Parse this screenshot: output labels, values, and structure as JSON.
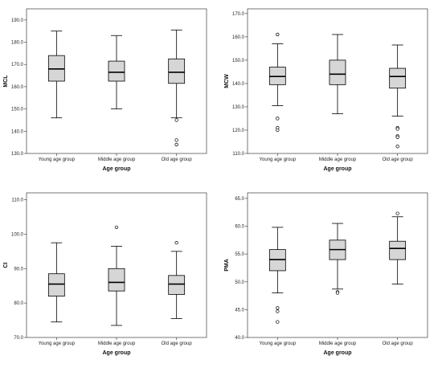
{
  "chart_data": [
    {
      "type": "box",
      "categories": [
        "Young age group",
        "Middle age group",
        "Old age group"
      ],
      "xlabel": "Age  group",
      "ylabel": "MCL",
      "ylim": [
        130,
        195
      ],
      "yticks": [
        130,
        140,
        150,
        160,
        170,
        180,
        190
      ],
      "tick_labels": [
        "130.0",
        "140.0",
        "150.0",
        "160.0",
        "170.0",
        "180.0",
        "190.0"
      ],
      "grid": false,
      "boxes": [
        {
          "category": "Young age group",
          "whisker_low": 146,
          "q1": 162.5,
          "median": 168,
          "q3": 174,
          "whisker_high": 185,
          "outliers": []
        },
        {
          "category": "Middle age group",
          "whisker_low": 150,
          "q1": 162.5,
          "median": 166.5,
          "q3": 171.5,
          "whisker_high": 183,
          "outliers": []
        },
        {
          "category": "Old age group",
          "whisker_low": 146,
          "q1": 161.5,
          "median": 166.5,
          "q3": 172.5,
          "whisker_high": 185.5,
          "outliers": [
            145,
            136,
            134
          ]
        }
      ]
    },
    {
      "type": "box",
      "categories": [
        "Young age group",
        "Middle age group",
        "Old age group"
      ],
      "xlabel": "Age  group",
      "ylabel": "MCW",
      "ylim": [
        110,
        172
      ],
      "yticks": [
        110,
        120,
        130,
        140,
        150,
        160,
        170
      ],
      "tick_labels": [
        "110.0",
        "120.0",
        "130.0",
        "140.0",
        "150.0",
        "160.0",
        "170.0"
      ],
      "grid": false,
      "boxes": [
        {
          "category": "Young age group",
          "whisker_low": 130.5,
          "q1": 139.5,
          "median": 143,
          "q3": 147,
          "whisker_high": 157,
          "outliers": [
            161,
            125,
            121,
            120
          ]
        },
        {
          "category": "Middle age group",
          "whisker_low": 127,
          "q1": 139.5,
          "median": 144,
          "q3": 150,
          "whisker_high": 161,
          "outliers": []
        },
        {
          "category": "Old age group",
          "whisker_low": 126,
          "q1": 138,
          "median": 143,
          "q3": 146.5,
          "whisker_high": 156.5,
          "outliers": [
            121,
            120.5,
            117.5,
            117,
            113
          ]
        }
      ]
    },
    {
      "type": "box",
      "categories": [
        "Young age group",
        "Middle age group",
        "Old age group"
      ],
      "xlabel": "Age  group",
      "ylabel": "CI",
      "ylim": [
        70,
        112
      ],
      "yticks": [
        70,
        80,
        90,
        100,
        110
      ],
      "tick_labels": [
        "70.0",
        "80.0",
        "90.0",
        "100.0",
        "110.0"
      ],
      "grid": false,
      "boxes": [
        {
          "category": "Young age group",
          "whisker_low": 74.5,
          "q1": 82,
          "median": 85.5,
          "q3": 88.5,
          "whisker_high": 97.5,
          "outliers": []
        },
        {
          "category": "Middle age group",
          "whisker_low": 73.5,
          "q1": 83.5,
          "median": 86,
          "q3": 90,
          "whisker_high": 96.5,
          "outliers": [
            102
          ]
        },
        {
          "category": "Old age group",
          "whisker_low": 75.5,
          "q1": 82.5,
          "median": 85.5,
          "q3": 88,
          "whisker_high": 95,
          "outliers": [
            97.5
          ]
        }
      ]
    },
    {
      "type": "box",
      "categories": [
        "Young age group",
        "Middle age group",
        "Old age group"
      ],
      "xlabel": "Age  group",
      "ylabel": "PMA",
      "ylim": [
        40,
        66
      ],
      "yticks": [
        40,
        45,
        50,
        55,
        60,
        65
      ],
      "tick_labels": [
        "40.0",
        "45.0",
        "50.0",
        "55.0",
        "60.0",
        "65.0"
      ],
      "grid": false,
      "boxes": [
        {
          "category": "Young age group",
          "whisker_low": 48,
          "q1": 52,
          "median": 54,
          "q3": 55.8,
          "whisker_high": 59.8,
          "outliers": [
            45.3,
            44.7,
            42.8
          ]
        },
        {
          "category": "Middle age group",
          "whisker_low": 48.7,
          "q1": 54,
          "median": 55.8,
          "q3": 57.5,
          "whisker_high": 60.5,
          "outliers": [
            48.2,
            48
          ]
        },
        {
          "category": "Old age group",
          "whisker_low": 49.6,
          "q1": 54,
          "median": 56,
          "q3": 57.3,
          "whisker_high": 61.7,
          "outliers": [
            62.3
          ]
        }
      ]
    }
  ]
}
